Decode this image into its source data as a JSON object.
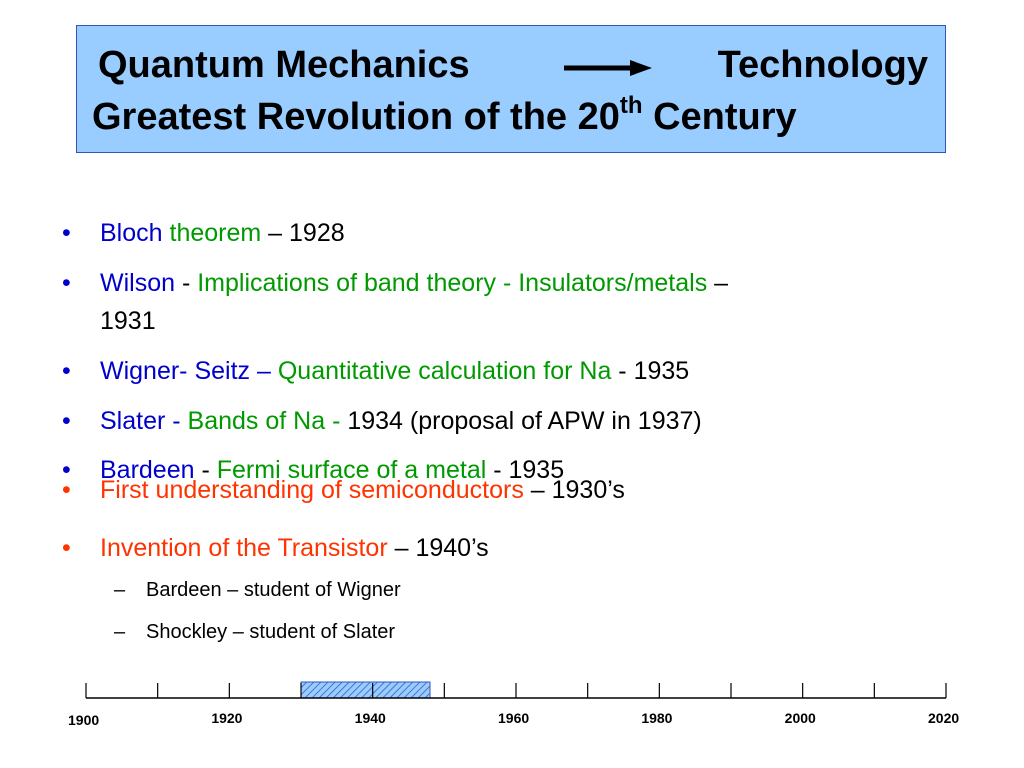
{
  "title": {
    "line1_left": "Quantum Mechanics",
    "line1_right": "Technology",
    "line2_main": "Greatest Revolution of the 20",
    "line2_sup": "th",
    "line2_end": " Century",
    "bg_color": "#99ccff",
    "arrow": "right-arrow"
  },
  "bullets": [
    {
      "name": "Bloch",
      "topic": "theorem",
      "sep": " – ",
      "year": "1928"
    },
    {
      "name": "Wilson",
      "sep1": " - ",
      "topic": "Implications of band theory - Insulators/metals",
      "sep2": " – ",
      "year": "1931"
    },
    {
      "name": "Wigner- Seitz –",
      "topic": "Quantitative calculation  for Na",
      "sep": " - ",
      "year": "1935"
    },
    {
      "name": "Slater - ",
      "topic": "Bands  of Na - ",
      "year": "1934",
      "extra": "   (proposal of  APW in 1937)"
    },
    {
      "name": "Bardeen",
      "sep1": " - ",
      "topic": "Fermi surface of a metal",
      "sep2": " - ",
      "year": "1935"
    },
    {
      "topic": "First understanding of semiconductors",
      "sep": " – ",
      "year": "1930’s"
    },
    {
      "topic": "Invention of the Transistor",
      "sep": " – ",
      "year": "1940’s"
    }
  ],
  "sub_bullets": [
    "Bardeen – student of Wigner",
    "Shockley – student of Slater"
  ],
  "bullet_char": "•",
  "dash_char": "–",
  "timeline": {
    "labels": [
      "1900",
      "1920",
      "1940",
      "1960",
      "1980",
      "2000",
      "2020"
    ],
    "start": 1900,
    "end": 2020,
    "tick_every": 10,
    "highlight_range": [
      1930,
      1948
    ],
    "highlight_color": "#99ccff"
  },
  "colors": {
    "name_blue": "#0000cc",
    "topic_green": "#009900",
    "highlight_red": "#ff3300"
  }
}
